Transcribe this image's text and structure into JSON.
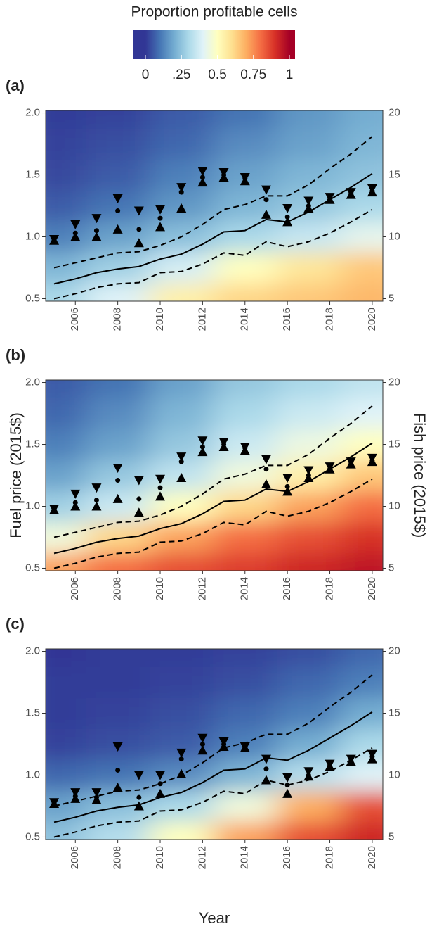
{
  "colorbar": {
    "title": "Proportion profitable cells",
    "lim": [
      0,
      1
    ],
    "ticks": [
      0,
      {
        "value": 0.25,
        "label": ".25"
      },
      0.5,
      0.75,
      1
    ],
    "colorscale": [
      "#313695",
      "#4575b4",
      "#74add1",
      "#abd9e9",
      "#e0f3f8",
      "#ffffbf",
      "#fee090",
      "#fdae61",
      "#f46d43",
      "#d73027",
      "#a50026"
    ]
  },
  "chart_data": [
    {
      "type": "heatmap",
      "label": "(a)",
      "x": [
        2005,
        2006,
        2007,
        2008,
        2009,
        2010,
        2011,
        2012,
        2013,
        2014,
        2015,
        2016,
        2017,
        2018,
        2019,
        2020
      ],
      "xlim": [
        2004.6,
        2020.5
      ],
      "xticks": [
        2006,
        2008,
        2010,
        2012,
        2014,
        2016,
        2018,
        2020
      ],
      "ylim": [
        0.48,
        2.02
      ],
      "yticks": [
        0.5,
        {
          "value": 1.0,
          "label": "1.0"
        },
        1.5,
        {
          "value": 2.0,
          "label": "2.0"
        }
      ],
      "y2lim": [
        4.8,
        20.2
      ],
      "y2ticks": [
        5,
        10,
        15,
        20
      ],
      "heat_x": [
        2005,
        2008,
        2011,
        2014,
        2017,
        2020
      ],
      "heat_y": [
        0.5,
        0.75,
        1.0,
        1.25,
        1.5,
        1.75,
        2.0
      ],
      "z": [
        [
          0.3,
          0.4,
          0.55,
          0.62,
          0.65,
          0.68
        ],
        [
          0.22,
          0.28,
          0.38,
          0.5,
          0.58,
          0.65
        ],
        [
          0.12,
          0.18,
          0.24,
          0.3,
          0.35,
          0.42
        ],
        [
          0.06,
          0.1,
          0.16,
          0.22,
          0.26,
          0.3
        ],
        [
          0.03,
          0.06,
          0.12,
          0.18,
          0.22,
          0.25
        ],
        [
          0.02,
          0.04,
          0.08,
          0.14,
          0.18,
          0.22
        ],
        [
          0.01,
          0.02,
          0.06,
          0.1,
          0.16,
          0.2
        ]
      ],
      "color": "#000000",
      "fuel": {
        "values": [
          0.62,
          0.66,
          0.71,
          0.74,
          0.76,
          0.82,
          0.86,
          0.94,
          1.04,
          1.05,
          1.14,
          1.12,
          1.2,
          1.3,
          1.4,
          1.51
        ],
        "upper": [
          0.75,
          0.79,
          0.83,
          0.87,
          0.88,
          0.93,
          1.0,
          1.1,
          1.22,
          1.26,
          1.33,
          1.33,
          1.42,
          1.55,
          1.67,
          1.81
        ],
        "lower": [
          0.5,
          0.54,
          0.59,
          0.62,
          0.63,
          0.71,
          0.72,
          0.78,
          0.87,
          0.85,
          0.96,
          0.92,
          0.96,
          1.03,
          1.12,
          1.22
        ]
      },
      "fish": {
        "axis": "y2",
        "values": [
          9.7,
          10.3,
          10.5,
          12.1,
          10.6,
          11.5,
          13.6,
          14.8,
          15.0,
          14.7,
          13.0,
          11.6,
          12.5,
          13.0,
          13.5,
          13.7
        ],
        "lower": [
          9.7,
          10.0,
          10.0,
          10.6,
          9.5,
          10.8,
          12.3,
          14.4,
          14.8,
          14.5,
          11.8,
          11.2,
          12.3,
          13.0,
          13.4,
          13.6
        ],
        "upper": [
          9.8,
          11.0,
          11.5,
          13.1,
          12.1,
          12.2,
          14.0,
          15.3,
          15.2,
          14.8,
          13.8,
          12.3,
          12.9,
          13.2,
          13.6,
          13.9
        ]
      }
    },
    {
      "type": "heatmap",
      "label": "(b)",
      "ylabel": "Fuel price (2015$)",
      "y2label": "Fish price (2015$)",
      "x": [
        2005,
        2006,
        2007,
        2008,
        2009,
        2010,
        2011,
        2012,
        2013,
        2014,
        2015,
        2016,
        2017,
        2018,
        2019,
        2020
      ],
      "xlim": [
        2004.6,
        2020.5
      ],
      "xticks": [
        2006,
        2008,
        2010,
        2012,
        2014,
        2016,
        2018,
        2020
      ],
      "ylim": [
        0.48,
        2.02
      ],
      "yticks": [
        0.5,
        {
          "value": 1.0,
          "label": "1.0"
        },
        1.5,
        {
          "value": 2.0,
          "label": "2.0"
        }
      ],
      "y2lim": [
        4.8,
        20.2
      ],
      "y2ticks": [
        5,
        10,
        15,
        20
      ],
      "heat_x": [
        2005,
        2008,
        2011,
        2014,
        2017,
        2020
      ],
      "heat_y": [
        0.5,
        0.75,
        1.0,
        1.25,
        1.5,
        1.75,
        2.0
      ],
      "z": [
        [
          0.72,
          0.8,
          0.85,
          0.88,
          0.92,
          0.95
        ],
        [
          0.45,
          0.62,
          0.72,
          0.8,
          0.85,
          0.9
        ],
        [
          0.28,
          0.36,
          0.5,
          0.62,
          0.72,
          0.8
        ],
        [
          0.18,
          0.26,
          0.34,
          0.45,
          0.55,
          0.65
        ],
        [
          0.12,
          0.18,
          0.26,
          0.36,
          0.44,
          0.5
        ],
        [
          0.08,
          0.14,
          0.22,
          0.3,
          0.36,
          0.4
        ],
        [
          0.06,
          0.1,
          0.18,
          0.26,
          0.3,
          0.34
        ]
      ],
      "color": "#000000",
      "fuel": {
        "values": [
          0.62,
          0.66,
          0.71,
          0.74,
          0.76,
          0.82,
          0.86,
          0.94,
          1.04,
          1.05,
          1.14,
          1.12,
          1.2,
          1.3,
          1.4,
          1.51
        ],
        "upper": [
          0.75,
          0.79,
          0.83,
          0.87,
          0.88,
          0.93,
          1.0,
          1.1,
          1.22,
          1.26,
          1.33,
          1.33,
          1.42,
          1.55,
          1.67,
          1.81
        ],
        "lower": [
          0.5,
          0.54,
          0.59,
          0.62,
          0.63,
          0.71,
          0.72,
          0.78,
          0.87,
          0.85,
          0.96,
          0.92,
          0.96,
          1.03,
          1.12,
          1.22
        ]
      },
      "fish": {
        "axis": "y2",
        "values": [
          9.7,
          10.3,
          10.5,
          12.1,
          10.6,
          11.5,
          13.6,
          14.8,
          15.0,
          14.7,
          13.0,
          11.6,
          12.5,
          13.0,
          13.5,
          13.7
        ],
        "lower": [
          9.7,
          10.0,
          10.0,
          10.6,
          9.5,
          10.8,
          12.3,
          14.4,
          14.8,
          14.5,
          11.8,
          11.2,
          12.3,
          13.0,
          13.4,
          13.6
        ],
        "upper": [
          9.8,
          11.0,
          11.5,
          13.1,
          12.1,
          12.2,
          14.0,
          15.3,
          15.2,
          14.8,
          13.8,
          12.3,
          12.9,
          13.2,
          13.6,
          13.9
        ]
      }
    },
    {
      "type": "heatmap",
      "label": "(c)",
      "xlabel": "Year",
      "x": [
        2005,
        2006,
        2007,
        2008,
        2009,
        2010,
        2011,
        2012,
        2013,
        2014,
        2015,
        2016,
        2017,
        2018,
        2019,
        2020
      ],
      "xlim": [
        2004.6,
        2020.5
      ],
      "xticks": [
        2006,
        2008,
        2010,
        2012,
        2014,
        2016,
        2018,
        2020
      ],
      "ylim": [
        0.48,
        2.02
      ],
      "yticks": [
        0.5,
        {
          "value": 1.0,
          "label": "1.0"
        },
        1.5,
        {
          "value": 2.0,
          "label": "2.0"
        }
      ],
      "y2lim": [
        4.8,
        20.2
      ],
      "y2ticks": [
        5,
        10,
        15,
        20
      ],
      "heat_x": [
        2005,
        2008,
        2011,
        2014,
        2017,
        2020
      ],
      "heat_y": [
        0.5,
        0.75,
        1.0,
        1.25,
        1.5,
        1.75,
        2.0
      ],
      "z": [
        [
          0.25,
          0.32,
          0.5,
          0.72,
          0.85,
          0.92
        ],
        [
          0.18,
          0.24,
          0.3,
          0.45,
          0.7,
          0.85
        ],
        [
          0.08,
          0.1,
          0.14,
          0.22,
          0.32,
          0.4
        ],
        [
          0.02,
          0.04,
          0.06,
          0.12,
          0.2,
          0.3
        ],
        [
          0.01,
          0.02,
          0.04,
          0.08,
          0.12,
          0.2
        ],
        [
          0.01,
          0.01,
          0.02,
          0.04,
          0.08,
          0.12
        ],
        [
          0,
          0.01,
          0.01,
          0.02,
          0.04,
          0.08
        ]
      ],
      "color": "#000000",
      "fuel": {
        "values": [
          0.62,
          0.66,
          0.71,
          0.74,
          0.76,
          0.82,
          0.86,
          0.94,
          1.04,
          1.05,
          1.14,
          1.12,
          1.2,
          1.3,
          1.4,
          1.51
        ],
        "upper": [
          0.75,
          0.79,
          0.83,
          0.87,
          0.88,
          0.93,
          1.0,
          1.1,
          1.22,
          1.26,
          1.33,
          1.33,
          1.42,
          1.55,
          1.67,
          1.81
        ],
        "lower": [
          0.5,
          0.54,
          0.59,
          0.62,
          0.63,
          0.71,
          0.72,
          0.78,
          0.87,
          0.85,
          0.96,
          0.92,
          0.96,
          1.03,
          1.12,
          1.22
        ]
      },
      "fish": {
        "axis": "y2",
        "values": [
          7.8,
          8.3,
          8.2,
          10.4,
          8.2,
          9.3,
          11.3,
          12.5,
          12.5,
          12.2,
          10.5,
          9.2,
          10.0,
          10.8,
          11.2,
          11.5
        ],
        "lower": [
          7.7,
          8.1,
          8.0,
          9.0,
          7.5,
          8.5,
          10.1,
          12.0,
          12.3,
          12.2,
          9.6,
          8.5,
          9.9,
          10.7,
          11.1,
          11.3
        ],
        "upper": [
          7.8,
          8.6,
          8.6,
          12.3,
          10.0,
          10.0,
          11.8,
          13.0,
          12.7,
          12.3,
          11.3,
          9.8,
          10.3,
          10.9,
          11.3,
          11.7
        ]
      }
    }
  ]
}
